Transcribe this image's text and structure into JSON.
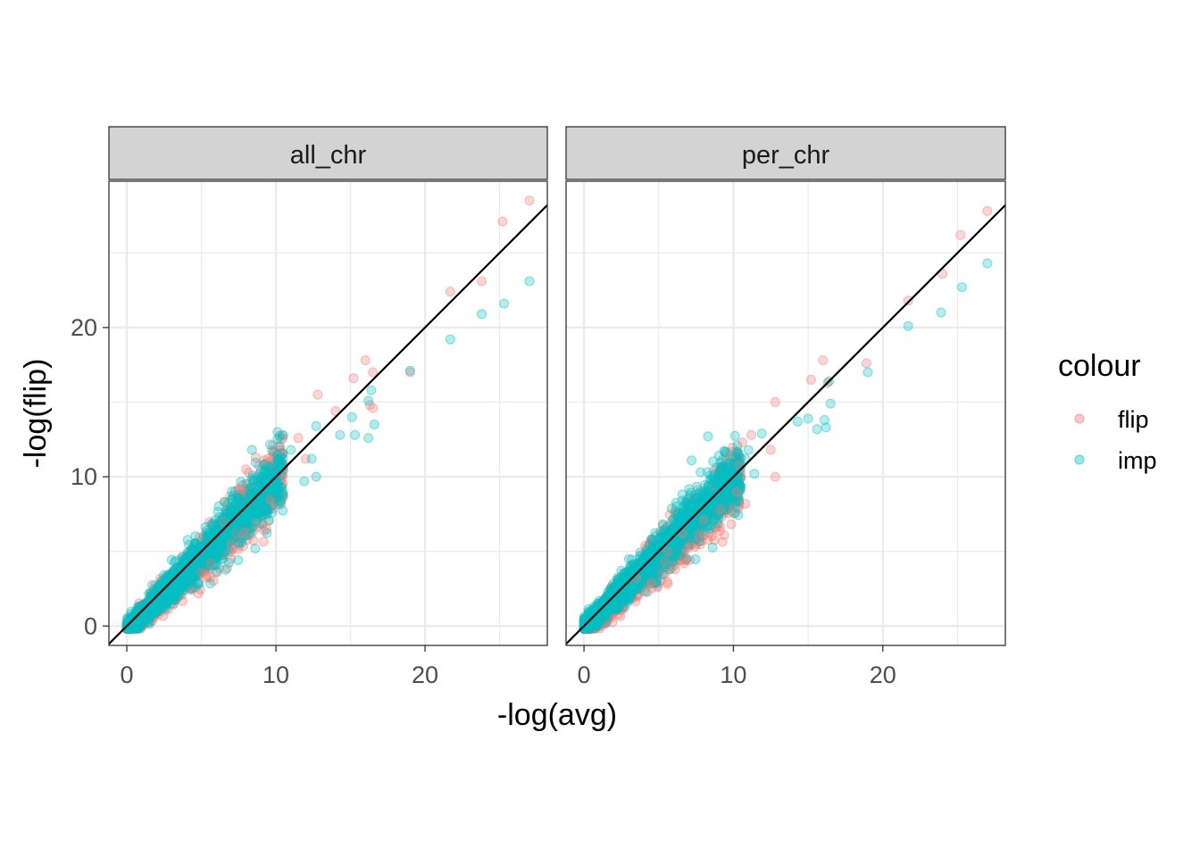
{
  "chart_data": {
    "type": "scatter",
    "facet_labels": [
      "all_chr",
      "per_chr"
    ],
    "xlabel": "-log(avg)",
    "ylabel": "-log(flip)",
    "xlim": [
      -1.2,
      28.2
    ],
    "ylim": [
      -1.3,
      29.8
    ],
    "x_ticks": [
      0,
      10,
      20
    ],
    "y_ticks": [
      0,
      10,
      20
    ],
    "legend": {
      "title": "colour",
      "position": "right",
      "entries": [
        "flip",
        "imp"
      ]
    },
    "colors": {
      "flip": "#F8766D",
      "imp": "#00BFC4",
      "strip_fill": "#D3D3D3",
      "grid": "#EBEBEB"
    },
    "reference_line": {
      "slope": 1,
      "intercept": 0
    },
    "grid": true,
    "bulk_cloud": {
      "description_count": "thousands of points concentrated along the diagonal for x in [0, 12]",
      "per_chr_imp_bias": 0.3
    },
    "panels": [
      {
        "name": "all_chr",
        "series": [
          {
            "name": "flip",
            "points": [
              [
                27.0,
                28.5
              ],
              [
                25.2,
                27.1
              ],
              [
                23.8,
                23.1
              ],
              [
                21.7,
                22.4
              ],
              [
                16.0,
                17.8
              ],
              [
                16.5,
                17.0
              ],
              [
                12.8,
                15.5
              ],
              [
                15.2,
                16.6
              ],
              [
                16.3,
                14.8
              ],
              [
                16.5,
                14.6
              ],
              [
                14.0,
                14.4
              ],
              [
                19.0,
                17.0
              ],
              [
                11.5,
                12.6
              ],
              [
                9.2,
                11.1
              ],
              [
                8.0,
                10.5
              ],
              [
                10.3,
                11.8
              ],
              [
                7.5,
                9.2
              ],
              [
                12.0,
                11.2
              ],
              [
                9.6,
                8.5
              ],
              [
                6.5,
                7.0
              ],
              [
                7.9,
                6.3
              ],
              [
                7.0,
                5.5
              ],
              [
                5.6,
                4.2
              ],
              [
                5.0,
                3.6
              ],
              [
                7.3,
                6.2
              ]
            ]
          },
          {
            "name": "imp",
            "points": [
              [
                27.0,
                23.1
              ],
              [
                25.3,
                21.6
              ],
              [
                23.8,
                20.9
              ],
              [
                21.7,
                19.2
              ],
              [
                19.0,
                17.1
              ],
              [
                16.4,
                15.8
              ],
              [
                16.2,
                15.1
              ],
              [
                16.6,
                13.5
              ],
              [
                16.2,
                12.6
              ],
              [
                15.3,
                12.8
              ],
              [
                14.3,
                12.8
              ],
              [
                15.1,
                14.0
              ],
              [
                12.7,
                13.4
              ],
              [
                12.4,
                11.2
              ],
              [
                12.7,
                10.0
              ],
              [
                11.9,
                9.7
              ],
              [
                11.0,
                11.8
              ],
              [
                10.5,
                8.7
              ],
              [
                9.3,
                7.7
              ],
              [
                8.4,
                11.8
              ],
              [
                8.9,
                10.2
              ],
              [
                6.5,
                7.2
              ],
              [
                7.2,
                6.4
              ],
              [
                5.8,
                5.0
              ],
              [
                4.9,
                4.3
              ]
            ]
          }
        ]
      },
      {
        "name": "per_chr",
        "series": [
          {
            "name": "flip",
            "points": [
              [
                27.0,
                27.8
              ],
              [
                25.2,
                26.2
              ],
              [
                24.0,
                23.6
              ],
              [
                21.7,
                21.8
              ],
              [
                16.0,
                17.8
              ],
              [
                16.3,
                16.3
              ],
              [
                18.9,
                17.6
              ],
              [
                15.2,
                16.5
              ],
              [
                12.8,
                15.0
              ],
              [
                11.2,
                12.8
              ],
              [
                10.6,
                12.3
              ],
              [
                12.5,
                11.8
              ],
              [
                10.4,
                10.8
              ],
              [
                12.8,
                10.0
              ],
              [
                10.2,
                9.0
              ],
              [
                10.8,
                8.2
              ],
              [
                9.1,
                7.8
              ],
              [
                8.0,
                7.1
              ],
              [
                7.7,
                6.0
              ],
              [
                6.6,
                6.2
              ],
              [
                5.4,
                4.3
              ],
              [
                6.7,
                4.2
              ],
              [
                5.6,
                5.0
              ],
              [
                4.5,
                2.9
              ],
              [
                3.5,
                3.2
              ]
            ]
          },
          {
            "name": "imp",
            "points": [
              [
                27.0,
                24.3
              ],
              [
                25.3,
                22.7
              ],
              [
                23.9,
                21.0
              ],
              [
                21.7,
                20.1
              ],
              [
                19.0,
                17.0
              ],
              [
                16.4,
                16.4
              ],
              [
                16.5,
                14.9
              ],
              [
                16.1,
                13.8
              ],
              [
                16.2,
                13.3
              ],
              [
                15.0,
                13.9
              ],
              [
                14.3,
                13.7
              ],
              [
                15.6,
                13.2
              ],
              [
                11.9,
                12.9
              ],
              [
                11.0,
                11.8
              ],
              [
                10.8,
                11.2
              ],
              [
                11.4,
                10.2
              ],
              [
                8.3,
                12.7
              ],
              [
                7.2,
                11.1
              ],
              [
                7.8,
                10.3
              ],
              [
                9.1,
                8.5
              ],
              [
                8.5,
                8.0
              ],
              [
                6.7,
                7.3
              ],
              [
                6.2,
                6.9
              ],
              [
                5.3,
                5.8
              ],
              [
                4.0,
                4.6
              ]
            ]
          }
        ]
      }
    ]
  }
}
